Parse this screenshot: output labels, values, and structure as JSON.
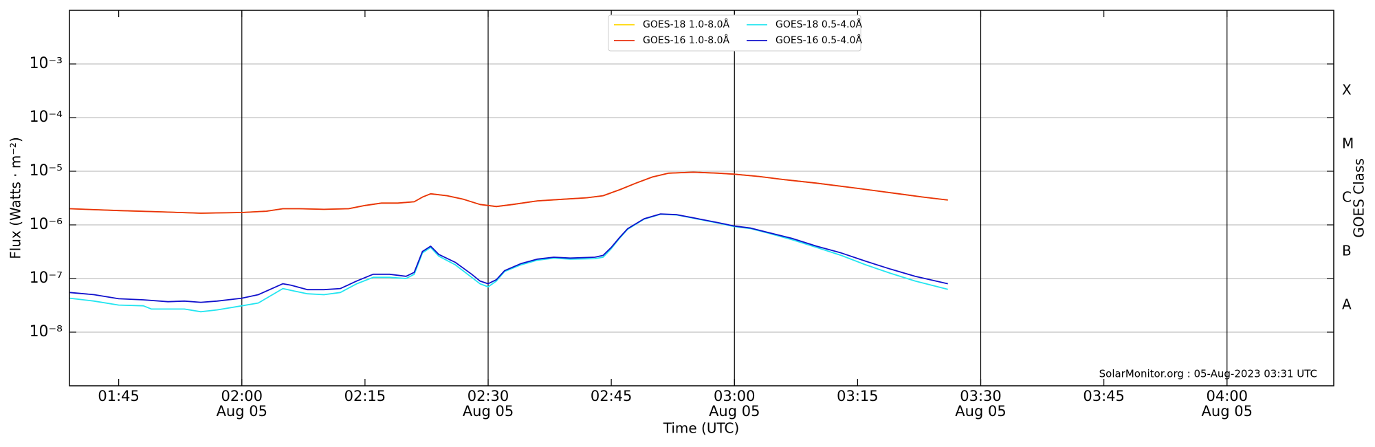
{
  "chart_data": {
    "type": "line",
    "xlabel": "Time (UTC)",
    "ylabel": "Flux (Watts · m⁻²)",
    "y2label": "GOES Class",
    "annotation": "SolarMonitor.org : 05-Aug-2023 03:31 UTC",
    "log_y": true,
    "grid": true,
    "legend": "upper center",
    "xlim": [
      "01:39",
      "04:13"
    ],
    "xticks": [
      {
        "value": "01:45",
        "label": "01:45"
      },
      {
        "value": "02:00",
        "label": "02:00",
        "date": "Aug 05"
      },
      {
        "value": "02:15",
        "label": "02:15"
      },
      {
        "value": "02:30",
        "label": "02:30",
        "date": "Aug 05"
      },
      {
        "value": "02:45",
        "label": "02:45"
      },
      {
        "value": "03:00",
        "label": "03:00",
        "date": "Aug 05"
      },
      {
        "value": "03:15",
        "label": "03:15"
      },
      {
        "value": "03:30",
        "label": "03:30",
        "date": "Aug 05"
      },
      {
        "value": "03:45",
        "label": "03:45"
      },
      {
        "value": "04:00",
        "label": "04:00",
        "date": "Aug 05"
      }
    ],
    "ylim": [
      1e-09,
      0.01
    ],
    "yticks": [
      {
        "value": 1e-08,
        "label": "10⁻⁸"
      },
      {
        "value": 1e-07,
        "label": "10⁻⁷"
      },
      {
        "value": 1e-06,
        "label": "10⁻⁶"
      },
      {
        "value": 1e-05,
        "label": "10⁻⁵"
      },
      {
        "value": 0.0001,
        "label": "10⁻⁴"
      },
      {
        "value": 0.001,
        "label": "10⁻³"
      }
    ],
    "y2ticks": [
      {
        "value": 1e-08,
        "label": "A"
      },
      {
        "value": 1e-07,
        "label": "B"
      },
      {
        "value": 1e-06,
        "label": "C"
      },
      {
        "value": 1e-05,
        "label": "M"
      },
      {
        "value": 0.0001,
        "label": "X"
      }
    ],
    "series": [
      {
        "name": "GOES-18 1.0-8.0Å",
        "color": "#ffd700",
        "x": [
          "01:39",
          "01:45",
          "01:50",
          "01:55",
          "02:00",
          "02:03",
          "02:05",
          "02:07",
          "02:10",
          "02:13",
          "02:15",
          "02:17",
          "02:19",
          "02:21",
          "02:22",
          "02:23",
          "02:25",
          "02:27",
          "02:29",
          "02:31",
          "02:33",
          "02:36",
          "02:39",
          "02:42",
          "02:44",
          "02:46",
          "02:48",
          "02:50",
          "02:52",
          "02:55",
          "02:58",
          "03:00",
          "03:03",
          "03:06",
          "03:10",
          "03:15",
          "03:20",
          "03:23",
          "03:26"
        ],
        "values": [
          2e-06,
          1.85e-06,
          1.75e-06,
          1.65e-06,
          1.7e-06,
          1.8e-06,
          2e-06,
          2e-06,
          1.95e-06,
          2e-06,
          2.3e-06,
          2.55e-06,
          2.55e-06,
          2.7e-06,
          3.3e-06,
          3.8e-06,
          3.5e-06,
          3e-06,
          2.4e-06,
          2.2e-06,
          2.4e-06,
          2.8e-06,
          3e-06,
          3.2e-06,
          3.5e-06,
          4.5e-06,
          6e-06,
          7.8e-06,
          9.2e-06,
          9.6e-06,
          9.2e-06,
          8.8e-06,
          8e-06,
          7e-06,
          6e-06,
          4.8e-06,
          3.8e-06,
          3.3e-06,
          2.9e-06
        ]
      },
      {
        "name": "GOES-16 1.0-8.0Å",
        "color": "#e8300e",
        "x": [
          "01:39",
          "01:45",
          "01:50",
          "01:55",
          "02:00",
          "02:03",
          "02:05",
          "02:07",
          "02:10",
          "02:13",
          "02:15",
          "02:17",
          "02:19",
          "02:21",
          "02:22",
          "02:23",
          "02:25",
          "02:27",
          "02:29",
          "02:31",
          "02:33",
          "02:36",
          "02:39",
          "02:42",
          "02:44",
          "02:46",
          "02:48",
          "02:50",
          "02:52",
          "02:55",
          "02:58",
          "03:00",
          "03:03",
          "03:06",
          "03:10",
          "03:15",
          "03:20",
          "03:23",
          "03:26"
        ],
        "values": [
          2e-06,
          1.85e-06,
          1.75e-06,
          1.65e-06,
          1.7e-06,
          1.8e-06,
          2e-06,
          2e-06,
          1.95e-06,
          2e-06,
          2.3e-06,
          2.55e-06,
          2.55e-06,
          2.7e-06,
          3.3e-06,
          3.8e-06,
          3.5e-06,
          3e-06,
          2.4e-06,
          2.2e-06,
          2.4e-06,
          2.8e-06,
          3e-06,
          3.2e-06,
          3.5e-06,
          4.5e-06,
          6e-06,
          7.8e-06,
          9.2e-06,
          9.6e-06,
          9.2e-06,
          8.8e-06,
          8e-06,
          7e-06,
          6e-06,
          4.8e-06,
          3.8e-06,
          3.3e-06,
          2.9e-06
        ]
      },
      {
        "name": "GOES-18 0.5-4.0Å",
        "color": "#22e5f0",
        "x": [
          "01:39",
          "01:42",
          "01:45",
          "01:48",
          "01:49",
          "01:51",
          "01:53",
          "01:55",
          "01:57",
          "02:00",
          "02:02",
          "02:05",
          "02:06",
          "02:08",
          "02:10",
          "02:12",
          "02:14",
          "02:16",
          "02:18",
          "02:20",
          "02:21",
          "02:22",
          "02:23",
          "02:24",
          "02:26",
          "02:28",
          "02:29",
          "02:30",
          "02:31",
          "02:32",
          "02:34",
          "02:36",
          "02:38",
          "02:40",
          "02:43",
          "02:44",
          "02:45",
          "02:46",
          "02:47",
          "02:49",
          "02:51",
          "02:53",
          "02:55",
          "02:58",
          "03:00",
          "03:02",
          "03:04",
          "03:07",
          "03:10",
          "03:13",
          "03:16",
          "03:19",
          "03:22",
          "03:26"
        ],
        "values": [
          4.3e-08,
          3.8e-08,
          3.2e-08,
          3.1e-08,
          2.7e-08,
          2.7e-08,
          2.7e-08,
          2.4e-08,
          2.6e-08,
          3.1e-08,
          3.5e-08,
          6.5e-08,
          6e-08,
          5.2e-08,
          5e-08,
          5.5e-08,
          8e-08,
          1.05e-07,
          1.05e-07,
          1e-07,
          1.2e-07,
          3e-07,
          3.8e-07,
          2.6e-07,
          1.8e-07,
          1.05e-07,
          8e-08,
          7e-08,
          9e-08,
          1.35e-07,
          1.8e-07,
          2.2e-07,
          2.4e-07,
          2.3e-07,
          2.35e-07,
          2.5e-07,
          3.6e-07,
          5.6e-07,
          8.3e-07,
          1.28e-06,
          1.58e-06,
          1.53e-06,
          1.33e-06,
          1.08e-06,
          9.3e-07,
          8.5e-07,
          7.1e-07,
          5.3e-07,
          3.8e-07,
          2.7e-07,
          1.8e-07,
          1.25e-07,
          9e-08,
          6.3e-08
        ]
      },
      {
        "name": "GOES-16 0.5-4.0Å",
        "color": "#1010cc",
        "x": [
          "01:39",
          "01:42",
          "01:45",
          "01:48",
          "01:51",
          "01:53",
          "01:55",
          "01:57",
          "02:00",
          "02:02",
          "02:05",
          "02:06",
          "02:08",
          "02:10",
          "02:12",
          "02:14",
          "02:16",
          "02:18",
          "02:20",
          "02:21",
          "02:22",
          "02:23",
          "02:24",
          "02:26",
          "02:28",
          "02:29",
          "02:30",
          "02:31",
          "02:32",
          "02:34",
          "02:36",
          "02:38",
          "02:40",
          "02:43",
          "02:44",
          "02:45",
          "02:46",
          "02:47",
          "02:49",
          "02:51",
          "02:53",
          "02:55",
          "02:58",
          "03:00",
          "03:02",
          "03:04",
          "03:07",
          "03:10",
          "03:13",
          "03:16",
          "03:19",
          "03:22",
          "03:26"
        ],
        "values": [
          5.5e-08,
          5e-08,
          4.2e-08,
          4e-08,
          3.7e-08,
          3.8e-08,
          3.6e-08,
          3.8e-08,
          4.3e-08,
          5e-08,
          8e-08,
          7.5e-08,
          6.2e-08,
          6.2e-08,
          6.5e-08,
          9e-08,
          1.2e-07,
          1.2e-07,
          1.1e-07,
          1.3e-07,
          3.2e-07,
          4e-07,
          2.8e-07,
          2e-07,
          1.2e-07,
          9e-08,
          8e-08,
          9.5e-08,
          1.4e-07,
          1.9e-07,
          2.3e-07,
          2.5e-07,
          2.4e-07,
          2.5e-07,
          2.7e-07,
          3.8e-07,
          5.8e-07,
          8.5e-07,
          1.3e-06,
          1.6e-06,
          1.55e-06,
          1.35e-06,
          1.1e-06,
          9.5e-07,
          8.7e-07,
          7.3e-07,
          5.6e-07,
          4e-07,
          3e-07,
          2.1e-07,
          1.5e-07,
          1.1e-07,
          8e-08
        ]
      }
    ]
  }
}
